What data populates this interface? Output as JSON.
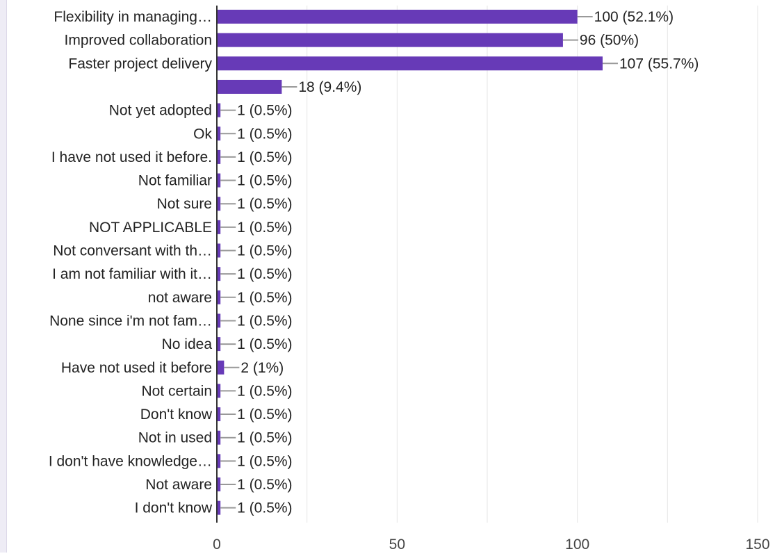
{
  "colors": {
    "bar": "#673ab7",
    "grid": "#e6e6e6",
    "axis": "#333333",
    "leader": "#999999",
    "text": "#222222"
  },
  "chart_data": {
    "type": "bar",
    "orientation": "horizontal",
    "categories": [
      "Flexibility in managing…",
      "Improved collaboration",
      "Faster project delivery",
      "",
      "Not yet adopted",
      "Ok",
      "I have not used it before.",
      "Not familiar",
      "Not sure",
      "NOT APPLICABLE",
      "Not conversant with th…",
      "I am not familiar with it…",
      "not aware",
      "None since i'm not fam…",
      "No idea",
      "Have not used it before",
      "Not certain",
      "Don't know",
      "Not in used",
      "I don't have knowledge…",
      "Not aware",
      "I don't know"
    ],
    "values": [
      100,
      96,
      107,
      18,
      1,
      1,
      1,
      1,
      1,
      1,
      1,
      1,
      1,
      1,
      1,
      2,
      1,
      1,
      1,
      1,
      1,
      1
    ],
    "value_labels": [
      "100 (52.1%)",
      "96 (50%)",
      "107 (55.7%)",
      "18 (9.4%)",
      "1 (0.5%)",
      "1 (0.5%)",
      "1 (0.5%)",
      "1 (0.5%)",
      "1 (0.5%)",
      "1 (0.5%)",
      "1 (0.5%)",
      "1 (0.5%)",
      "1 (0.5%)",
      "1 (0.5%)",
      "1 (0.5%)",
      "2 (1%)",
      "1 (0.5%)",
      "1 (0.5%)",
      "1 (0.5%)",
      "1 (0.5%)",
      "1 (0.5%)",
      "1 (0.5%)"
    ],
    "xlim": [
      0,
      150
    ],
    "xticks": [
      0,
      50,
      100,
      150
    ],
    "grid": true,
    "legend": "none",
    "title": "",
    "xlabel": "",
    "ylabel": ""
  }
}
